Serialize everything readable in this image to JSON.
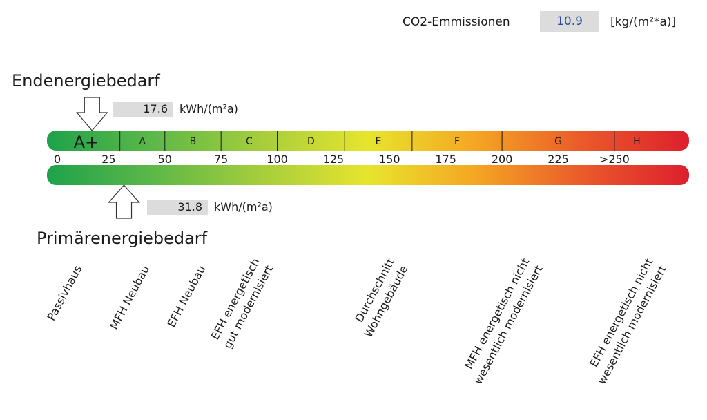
{
  "co2": {
    "label": "CO2-Emmissionen",
    "value": "10.9",
    "unit": "[kg/(m²*a)]",
    "value_color": "#2a4f9a"
  },
  "endenergie": {
    "title": "Endenergiebedarf",
    "value": "17.6",
    "unit": "kWh/(m²a)"
  },
  "primaerenergie": {
    "title": "Primärenergiebedarf",
    "value": "31.8",
    "unit": "kWh/(m²a)"
  },
  "chart_data": {
    "type": "energy-efficiency-scale",
    "classes": [
      {
        "label": "A+",
        "from": 0,
        "to": 30
      },
      {
        "label": "A",
        "from": 30,
        "to": 50
      },
      {
        "label": "B",
        "from": 50,
        "to": 75
      },
      {
        "label": "C",
        "from": 75,
        "to": 100
      },
      {
        "label": "D",
        "from": 100,
        "to": 130
      },
      {
        "label": "E",
        "from": 130,
        "to": 160
      },
      {
        "label": "F",
        "from": 160,
        "to": 200
      },
      {
        "label": "G",
        "from": 200,
        "to": 250
      },
      {
        "label": "H",
        "from": 250,
        "to": 270
      }
    ],
    "ticks": [
      {
        "label": "0",
        "value": 0
      },
      {
        "label": "25",
        "value": 25
      },
      {
        "label": "50",
        "value": 50
      },
      {
        "label": "75",
        "value": 75
      },
      {
        "label": "100",
        "value": 100
      },
      {
        "label": "125",
        "value": 125
      },
      {
        "label": "150",
        "value": 150
      },
      {
        "label": "175",
        "value": 175
      },
      {
        "label": "200",
        "value": 200
      },
      {
        "label": "225",
        "value": 225
      },
      {
        "label": ">250",
        "value": 250
      }
    ],
    "scale_range": [
      0,
      270
    ],
    "markers": [
      {
        "name": "Endenergiebedarf",
        "value": 17.6,
        "position": "top"
      },
      {
        "name": "Primärenergiebedarf",
        "value": 31.8,
        "position": "bottom"
      }
    ],
    "reference_labels": [
      {
        "lines": [
          "Passivhaus"
        ],
        "value": 15
      },
      {
        "lines": [
          "MFH Neubau"
        ],
        "value": 45
      },
      {
        "lines": [
          "EFH Neubau"
        ],
        "value": 70
      },
      {
        "lines": [
          "EFH energetisch",
          "gut modernisiert"
        ],
        "value": 100
      },
      {
        "lines": [
          "Durchschnitt",
          "Wohngebäude"
        ],
        "value": 160
      },
      {
        "lines": [
          "MFH energetisch nicht",
          "wesentlich modernisiert"
        ],
        "value": 220
      },
      {
        "lines": [
          "EFH energetisch nicht",
          "wesentlich modernisiert"
        ],
        "value": 275
      }
    ],
    "gradient_colors": [
      "#1ea24b",
      "#5db848",
      "#a6cd3c",
      "#e7e52d",
      "#f5a623",
      "#ea5a2b",
      "#dd1f2d"
    ]
  }
}
